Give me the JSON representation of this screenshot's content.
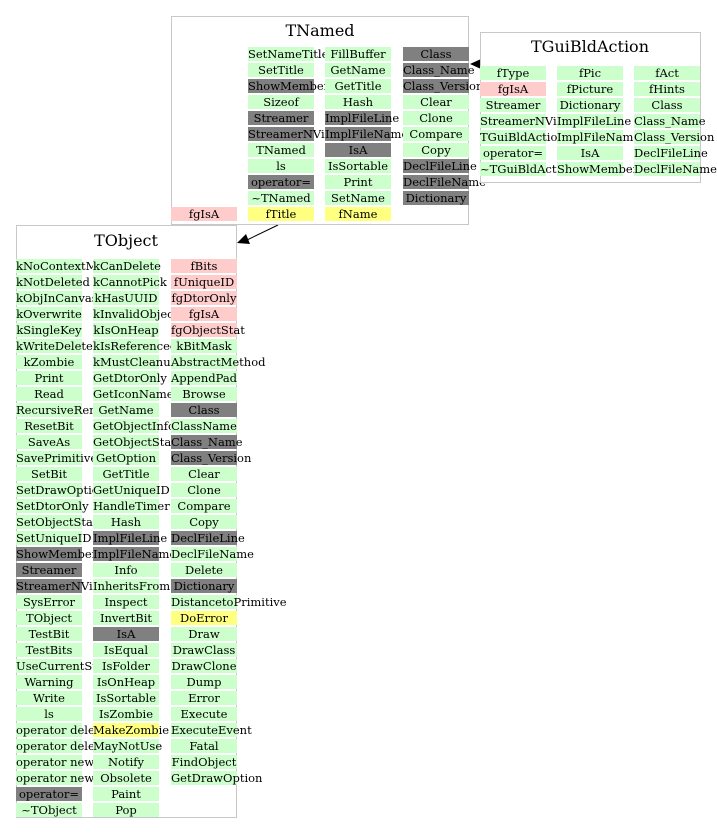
{
  "classes": [
    {
      "id": "tnamed",
      "title": "TNamed",
      "columns": [
        [
          {
            "t": "SetNameTitle",
            "c": "g"
          },
          {
            "t": "SetTitle",
            "c": "g"
          },
          {
            "t": "ShowMembers",
            "c": "d"
          },
          {
            "t": "Sizeof",
            "c": "g"
          },
          {
            "t": "Streamer",
            "c": "d"
          },
          {
            "t": "StreamerNVirtual",
            "c": "d"
          },
          {
            "t": "TNamed",
            "c": "g"
          },
          {
            "t": "ls",
            "c": "g"
          },
          {
            "t": "operator=",
            "c": "d"
          },
          {
            "t": "~TNamed",
            "c": "g"
          },
          {
            "t": "fTitle",
            "c": "y"
          }
        ],
        [
          {
            "t": "FillBuffer",
            "c": "g"
          },
          {
            "t": "GetName",
            "c": "g"
          },
          {
            "t": "GetTitle",
            "c": "g"
          },
          {
            "t": "Hash",
            "c": "g"
          },
          {
            "t": "ImplFileLine",
            "c": "d"
          },
          {
            "t": "ImplFileName",
            "c": "d"
          },
          {
            "t": "IsA",
            "c": "d"
          },
          {
            "t": "IsSortable",
            "c": "g"
          },
          {
            "t": "Print",
            "c": "g"
          },
          {
            "t": "SetName",
            "c": "g"
          },
          {
            "t": "fName",
            "c": "y"
          }
        ],
        [
          {
            "t": "Class",
            "c": "d"
          },
          {
            "t": "Class_Name",
            "c": "d"
          },
          {
            "t": "Class_Version",
            "c": "d"
          },
          {
            "t": "Clear",
            "c": "g"
          },
          {
            "t": "Clone",
            "c": "g"
          },
          {
            "t": "Compare",
            "c": "g"
          },
          {
            "t": "Copy",
            "c": "g"
          },
          {
            "t": "DeclFileLine",
            "c": "d"
          },
          {
            "t": "DeclFileName",
            "c": "d"
          },
          {
            "t": "Dictionary",
            "c": "d"
          }
        ]
      ],
      "extra": {
        "t": "fgIsA",
        "c": "p"
      }
    },
    {
      "id": "tguibldaction",
      "title": "TGuiBldAction",
      "columns": [
        [
          {
            "t": "fType",
            "c": "g"
          },
          {
            "t": "fgIsA",
            "c": "p"
          },
          {
            "t": "Streamer",
            "c": "g"
          },
          {
            "t": "StreamerNVirtual",
            "c": "g"
          },
          {
            "t": "TGuiBldAction",
            "c": "g"
          },
          {
            "t": "operator=",
            "c": "g"
          },
          {
            "t": "~TGuiBldAction",
            "c": "g"
          }
        ],
        [
          {
            "t": "fPic",
            "c": "g"
          },
          {
            "t": "fPicture",
            "c": "g"
          },
          {
            "t": "Dictionary",
            "c": "g"
          },
          {
            "t": "ImplFileLine",
            "c": "g"
          },
          {
            "t": "ImplFileName",
            "c": "g"
          },
          {
            "t": "IsA",
            "c": "g"
          },
          {
            "t": "ShowMembers",
            "c": "g"
          }
        ],
        [
          {
            "t": "fAct",
            "c": "g"
          },
          {
            "t": "fHints",
            "c": "g"
          },
          {
            "t": "Class",
            "c": "g"
          },
          {
            "t": "Class_Name",
            "c": "g"
          },
          {
            "t": "Class_Version",
            "c": "g"
          },
          {
            "t": "DeclFileLine",
            "c": "g"
          },
          {
            "t": "DeclFileName",
            "c": "g"
          }
        ]
      ]
    },
    {
      "id": "tobject",
      "title": "TObject",
      "columns": [
        [
          {
            "t": "kNoContextMenu",
            "c": "g"
          },
          {
            "t": "kNotDeleted",
            "c": "g"
          },
          {
            "t": "kObjInCanvas",
            "c": "g"
          },
          {
            "t": "kOverwrite",
            "c": "g"
          },
          {
            "t": "kSingleKey",
            "c": "g"
          },
          {
            "t": "kWriteDelete",
            "c": "g"
          },
          {
            "t": "kZombie",
            "c": "g"
          },
          {
            "t": "Print",
            "c": "g"
          },
          {
            "t": "Read",
            "c": "g"
          },
          {
            "t": "RecursiveRemove",
            "c": "g"
          },
          {
            "t": "ResetBit",
            "c": "g"
          },
          {
            "t": "SaveAs",
            "c": "g"
          },
          {
            "t": "SavePrimitive",
            "c": "g"
          },
          {
            "t": "SetBit",
            "c": "g"
          },
          {
            "t": "SetDrawOption",
            "c": "g"
          },
          {
            "t": "SetDtorOnly",
            "c": "g"
          },
          {
            "t": "SetObjectStat",
            "c": "g"
          },
          {
            "t": "SetUniqueID",
            "c": "g"
          },
          {
            "t": "ShowMembers",
            "c": "d"
          },
          {
            "t": "Streamer",
            "c": "d"
          },
          {
            "t": "StreamerNVirtual",
            "c": "d"
          },
          {
            "t": "SysError",
            "c": "g"
          },
          {
            "t": "TObject",
            "c": "g"
          },
          {
            "t": "TestBit",
            "c": "g"
          },
          {
            "t": "TestBits",
            "c": "g"
          },
          {
            "t": "UseCurrentStyle",
            "c": "g"
          },
          {
            "t": "Warning",
            "c": "g"
          },
          {
            "t": "Write",
            "c": "g"
          },
          {
            "t": "ls",
            "c": "g"
          },
          {
            "t": "operator delete",
            "c": "g"
          },
          {
            "t": "operator delete[]",
            "c": "g"
          },
          {
            "t": "operator new",
            "c": "g"
          },
          {
            "t": "operator new[]",
            "c": "g"
          },
          {
            "t": "operator=",
            "c": "d"
          },
          {
            "t": "~TObject",
            "c": "g"
          }
        ],
        [
          {
            "t": "kCanDelete",
            "c": "g"
          },
          {
            "t": "kCannotPick",
            "c": "g"
          },
          {
            "t": "kHasUUID",
            "c": "g"
          },
          {
            "t": "kInvalidObject",
            "c": "g"
          },
          {
            "t": "kIsOnHeap",
            "c": "g"
          },
          {
            "t": "kIsReferenced",
            "c": "g"
          },
          {
            "t": "kMustCleanup",
            "c": "g"
          },
          {
            "t": "GetDtorOnly",
            "c": "g"
          },
          {
            "t": "GetIconName",
            "c": "g"
          },
          {
            "t": "GetName",
            "c": "g"
          },
          {
            "t": "GetObjectInfo",
            "c": "g"
          },
          {
            "t": "GetObjectStat",
            "c": "g"
          },
          {
            "t": "GetOption",
            "c": "g"
          },
          {
            "t": "GetTitle",
            "c": "g"
          },
          {
            "t": "GetUniqueID",
            "c": "g"
          },
          {
            "t": "HandleTimer",
            "c": "g"
          },
          {
            "t": "Hash",
            "c": "g"
          },
          {
            "t": "ImplFileLine",
            "c": "d"
          },
          {
            "t": "ImplFileName",
            "c": "d"
          },
          {
            "t": "Info",
            "c": "g"
          },
          {
            "t": "InheritsFrom",
            "c": "g"
          },
          {
            "t": "Inspect",
            "c": "g"
          },
          {
            "t": "InvertBit",
            "c": "g"
          },
          {
            "t": "IsA",
            "c": "d"
          },
          {
            "t": "IsEqual",
            "c": "g"
          },
          {
            "t": "IsFolder",
            "c": "g"
          },
          {
            "t": "IsOnHeap",
            "c": "g"
          },
          {
            "t": "IsSortable",
            "c": "g"
          },
          {
            "t": "IsZombie",
            "c": "g"
          },
          {
            "t": "MakeZombie",
            "c": "y"
          },
          {
            "t": "MayNotUse",
            "c": "g"
          },
          {
            "t": "Notify",
            "c": "g"
          },
          {
            "t": "Obsolete",
            "c": "g"
          },
          {
            "t": "Paint",
            "c": "g"
          },
          {
            "t": "Pop",
            "c": "g"
          }
        ],
        [
          {
            "t": "fBits",
            "c": "p"
          },
          {
            "t": "fUniqueID",
            "c": "p"
          },
          {
            "t": "fgDtorOnly",
            "c": "p"
          },
          {
            "t": "fgIsA",
            "c": "p"
          },
          {
            "t": "fgObjectStat",
            "c": "p"
          },
          {
            "t": "kBitMask",
            "c": "g"
          },
          {
            "t": "AbstractMethod",
            "c": "g"
          },
          {
            "t": "AppendPad",
            "c": "g"
          },
          {
            "t": "Browse",
            "c": "g"
          },
          {
            "t": "Class",
            "c": "d"
          },
          {
            "t": "ClassName",
            "c": "g"
          },
          {
            "t": "Class_Name",
            "c": "d"
          },
          {
            "t": "Class_Version",
            "c": "d"
          },
          {
            "t": "Clear",
            "c": "g"
          },
          {
            "t": "Clone",
            "c": "g"
          },
          {
            "t": "Compare",
            "c": "g"
          },
          {
            "t": "Copy",
            "c": "g"
          },
          {
            "t": "DeclFileLine",
            "c": "d"
          },
          {
            "t": "DeclFileName",
            "c": "g"
          },
          {
            "t": "Delete",
            "c": "g"
          },
          {
            "t": "Dictionary",
            "c": "d"
          },
          {
            "t": "DistancetoPrimitive",
            "c": "g"
          },
          {
            "t": "DoError",
            "c": "y"
          },
          {
            "t": "Draw",
            "c": "g"
          },
          {
            "t": "DrawClass",
            "c": "g"
          },
          {
            "t": "DrawClone",
            "c": "g"
          },
          {
            "t": "Dump",
            "c": "g"
          },
          {
            "t": "Error",
            "c": "g"
          },
          {
            "t": "Execute",
            "c": "g"
          },
          {
            "t": "ExecuteEvent",
            "c": "g"
          },
          {
            "t": "Fatal",
            "c": "g"
          },
          {
            "t": "FindObject",
            "c": "g"
          },
          {
            "t": "GetDrawOption",
            "c": "g"
          }
        ]
      ]
    }
  ],
  "colors": {
    "public": "#ccffcc",
    "inherited": "#808080",
    "private": "#ffcccc",
    "protected": "#ffff80",
    "border": "#c8c8c8",
    "edge": "#000000"
  }
}
